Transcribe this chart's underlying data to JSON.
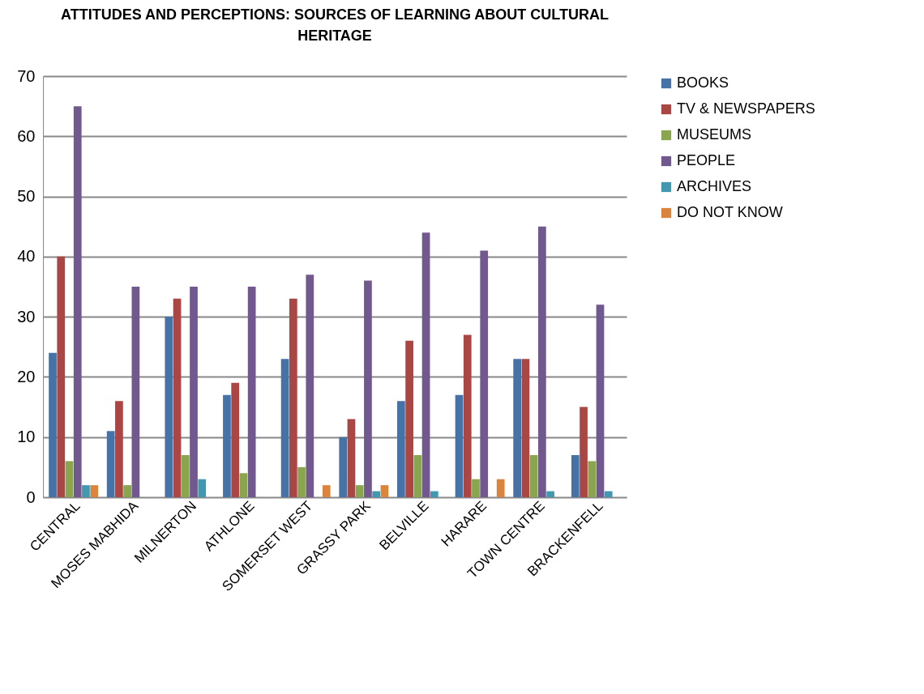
{
  "chart_data": {
    "type": "bar",
    "title": "ATTITUDES AND PERCEPTIONS: SOURCES OF LEARNING ABOUT CULTURAL HERITAGE",
    "categories": [
      "CENTRAL",
      "MOSES MABHIDA",
      "MILNERTON",
      "ATHLONE",
      "SOMERSET WEST",
      "GRASSY PARK",
      "BELVILLE",
      "HARARE",
      "TOWN CENTRE",
      "BRACKENFELL"
    ],
    "series": [
      {
        "name": "BOOKS",
        "color": "#4572a7",
        "values": [
          24,
          11,
          30,
          17,
          23,
          10,
          16,
          17,
          23,
          7
        ]
      },
      {
        "name": "TV & NEWSPAPERS",
        "color": "#aa4643",
        "values": [
          40,
          16,
          33,
          19,
          33,
          13,
          26,
          27,
          23,
          15
        ]
      },
      {
        "name": "MUSEUMS",
        "color": "#89a54e",
        "values": [
          6,
          2,
          7,
          4,
          5,
          2,
          7,
          3,
          7,
          6
        ]
      },
      {
        "name": "PEOPLE",
        "color": "#71588f",
        "values": [
          65,
          35,
          35,
          35,
          37,
          36,
          44,
          41,
          45,
          32
        ]
      },
      {
        "name": "ARCHIVES",
        "color": "#4198af",
        "values": [
          2,
          0,
          3,
          0,
          0,
          1,
          1,
          0,
          1,
          1
        ]
      },
      {
        "name": "DO NOT KNOW",
        "color": "#db843d",
        "values": [
          2,
          0,
          0,
          0,
          2,
          2,
          0,
          3,
          0,
          0
        ]
      }
    ],
    "ylim": [
      0,
      70
    ],
    "yticks": [
      0,
      10,
      20,
      30,
      40,
      50,
      60,
      70
    ],
    "grid": "y",
    "legend": "right"
  }
}
